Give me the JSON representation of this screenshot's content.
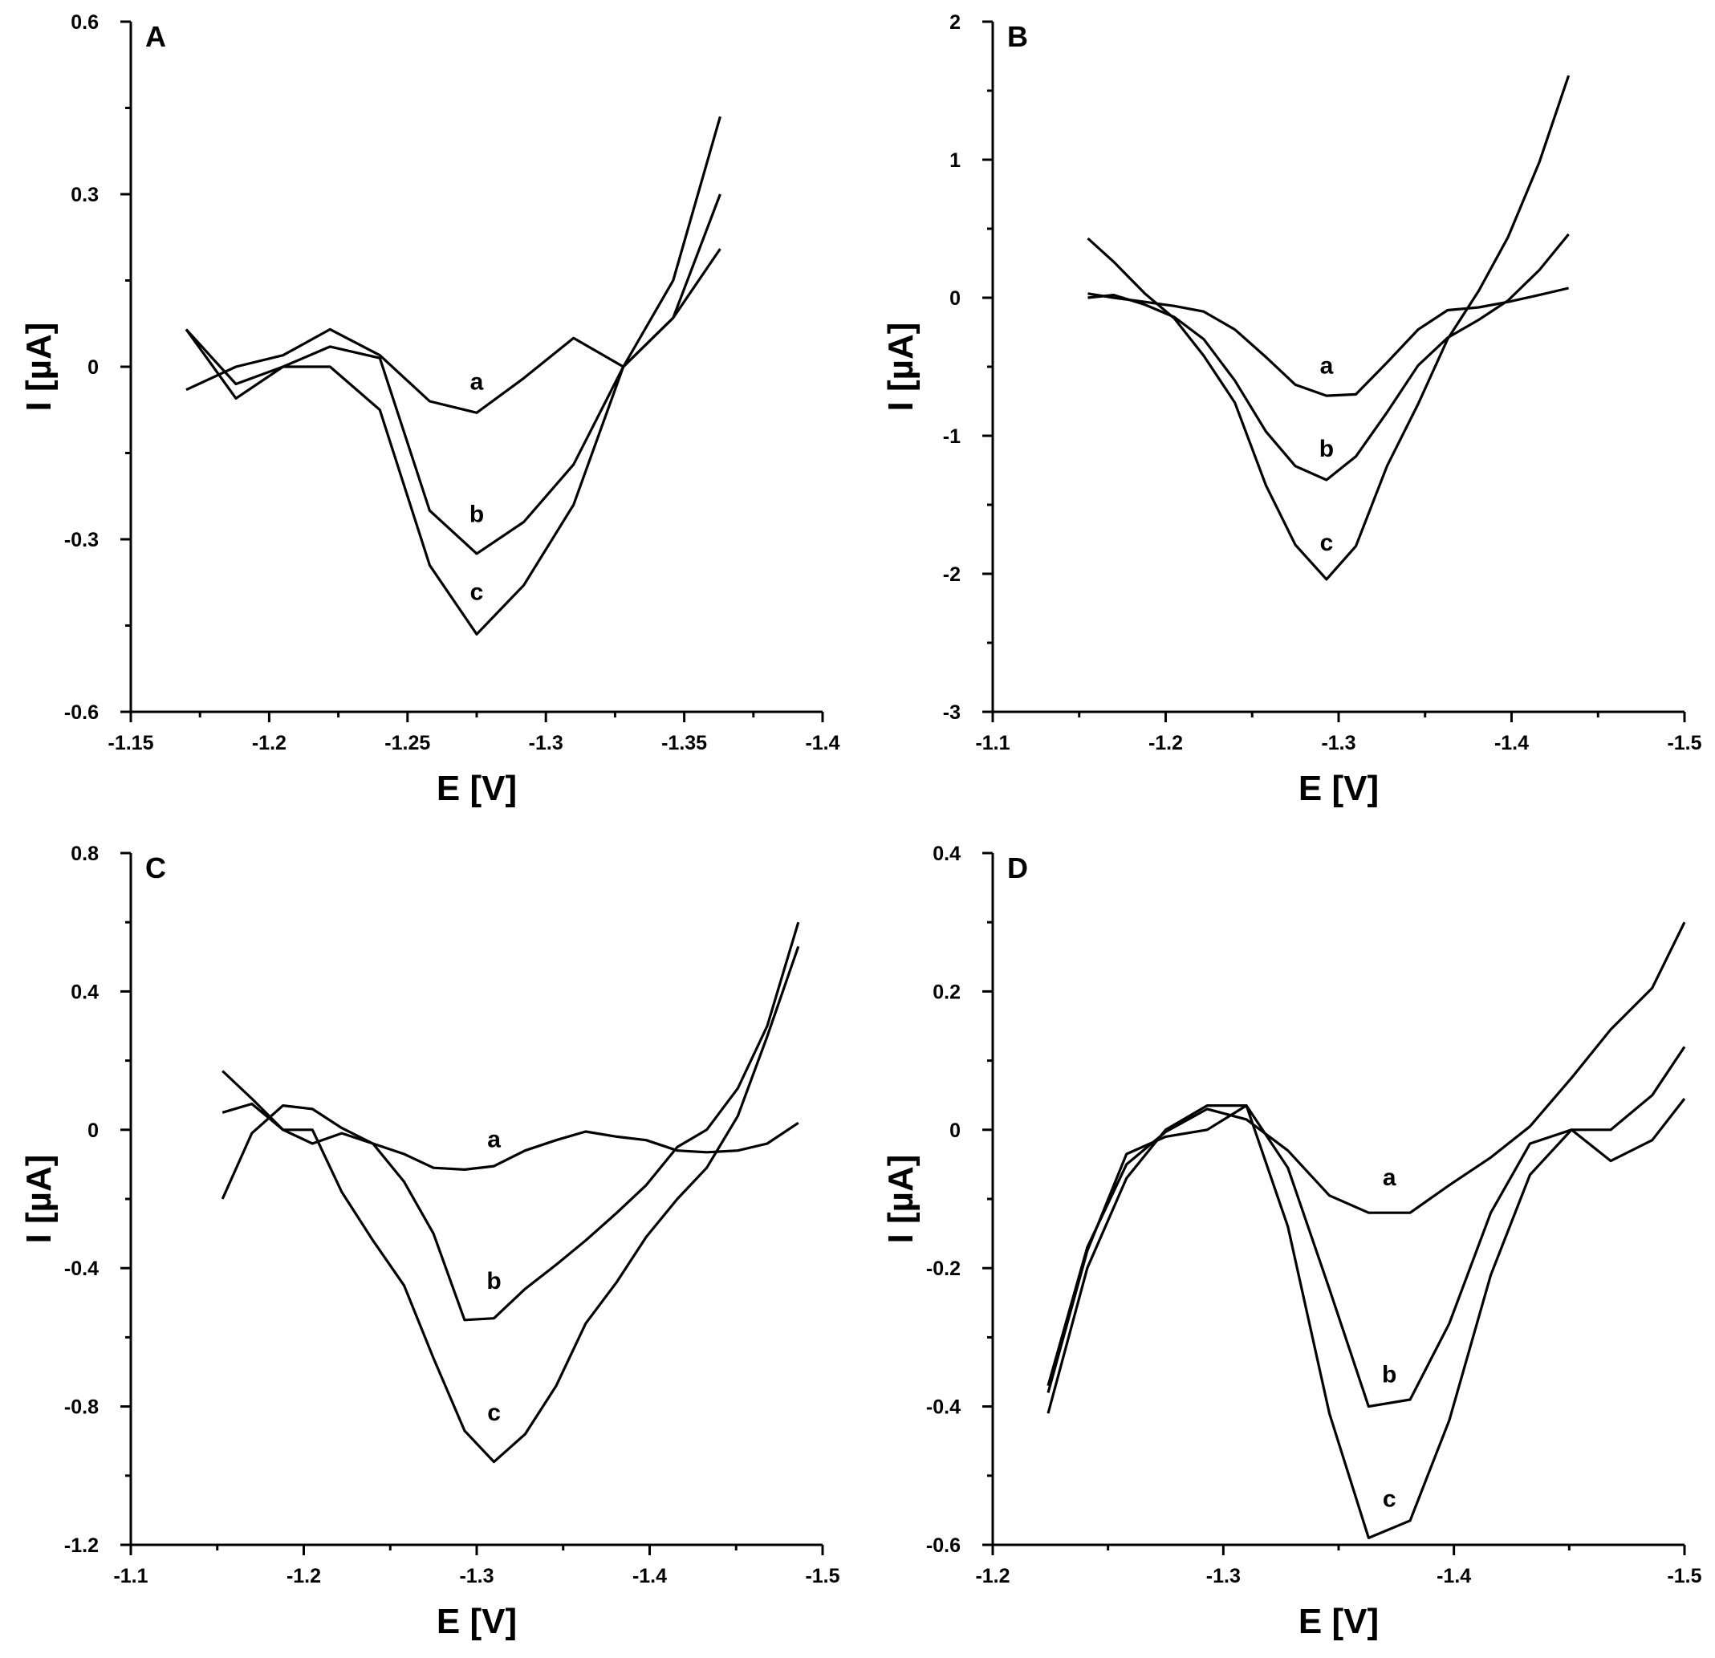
{
  "chart_data": [
    {
      "type": "line",
      "panel": "A",
      "xlabel": "E [V]",
      "ylabel": "I [µA]",
      "xlim": [
        -1.15,
        -1.4
      ],
      "ylim": [
        -0.6,
        0.6
      ],
      "xticks": [
        -1.15,
        -1.2,
        -1.25,
        -1.3,
        -1.35,
        -1.4
      ],
      "xtick_labels": [
        "-1.15",
        "-1.2",
        "-1.25",
        "-1.3",
        "-1.35",
        "-1.4"
      ],
      "yticks": [
        -0.6,
        -0.3,
        0,
        0.3,
        0.6
      ],
      "ytick_labels": [
        "-0.6",
        "-0.3",
        "0",
        "0.3",
        "0.6"
      ],
      "series": [
        {
          "name": "a",
          "label_at": [
            -1.275,
            -0.04
          ],
          "x": [
            -1.17,
            -1.188,
            -1.205,
            -1.222,
            -1.24,
            -1.258,
            -1.275,
            -1.292,
            -1.31,
            -1.328,
            -1.346,
            -1.363
          ],
          "y": [
            -0.04,
            0.0,
            0.02,
            0.065,
            0.02,
            -0.06,
            -0.08,
            -0.02,
            0.05,
            0.0,
            0.085,
            0.205
          ]
        },
        {
          "name": "b",
          "label_at": [
            -1.275,
            -0.27
          ],
          "x": [
            -1.17,
            -1.188,
            -1.205,
            -1.222,
            -1.24,
            -1.258,
            -1.275,
            -1.292,
            -1.31,
            -1.328,
            -1.346,
            -1.363
          ],
          "y": [
            0.065,
            -0.03,
            0.0,
            0.035,
            0.015,
            -0.25,
            -0.325,
            -0.27,
            -0.17,
            0.0,
            0.085,
            0.3
          ]
        },
        {
          "name": "c",
          "label_at": [
            -1.275,
            -0.405
          ],
          "x": [
            -1.17,
            -1.188,
            -1.205,
            -1.222,
            -1.24,
            -1.258,
            -1.275,
            -1.292,
            -1.31,
            -1.328,
            -1.346,
            -1.363
          ],
          "y": [
            0.065,
            -0.055,
            0.0,
            0.0,
            -0.075,
            -0.345,
            -0.465,
            -0.38,
            -0.24,
            0.0,
            0.15,
            0.435
          ]
        }
      ]
    },
    {
      "type": "line",
      "panel": "B",
      "xlabel": "E [V]",
      "ylabel": "I [µA]",
      "xlim": [
        -1.1,
        -1.5
      ],
      "ylim": [
        -3,
        2
      ],
      "xticks": [
        -1.1,
        -1.2,
        -1.3,
        -1.4,
        -1.5
      ],
      "xtick_labels": [
        "-1.1",
        "-1.2",
        "-1.3",
        "-1.4",
        "-1.5"
      ],
      "yticks": [
        -3,
        -2,
        -1,
        0,
        1,
        2
      ],
      "ytick_labels": [
        "-3",
        "-2",
        "-1",
        "0",
        "1",
        "2"
      ],
      "series": [
        {
          "name": "a",
          "label_at": [
            -1.293,
            -0.55
          ],
          "x": [
            -1.155,
            -1.17,
            -1.188,
            -1.205,
            -1.222,
            -1.24,
            -1.258,
            -1.275,
            -1.293,
            -1.31,
            -1.328,
            -1.346,
            -1.363,
            -1.381,
            -1.398,
            -1.416,
            -1.433
          ],
          "y": [
            0.03,
            0.0,
            -0.03,
            -0.06,
            -0.1,
            -0.23,
            -0.43,
            -0.63,
            -0.71,
            -0.7,
            -0.47,
            -0.23,
            -0.09,
            -0.07,
            -0.03,
            0.02,
            0.07
          ]
        },
        {
          "name": "b",
          "label_at": [
            -1.293,
            -1.15
          ],
          "x": [
            -1.155,
            -1.17,
            -1.188,
            -1.205,
            -1.222,
            -1.24,
            -1.258,
            -1.275,
            -1.293,
            -1.31,
            -1.328,
            -1.346,
            -1.363,
            -1.381,
            -1.398,
            -1.416,
            -1.433
          ],
          "y": [
            0.0,
            0.02,
            -0.05,
            -0.14,
            -0.3,
            -0.6,
            -0.97,
            -1.22,
            -1.32,
            -1.15,
            -0.83,
            -0.49,
            -0.29,
            -0.16,
            -0.02,
            0.2,
            0.46
          ]
        },
        {
          "name": "c",
          "label_at": [
            -1.293,
            -1.83
          ],
          "x": [
            -1.155,
            -1.17,
            -1.188,
            -1.205,
            -1.222,
            -1.24,
            -1.258,
            -1.275,
            -1.293,
            -1.31,
            -1.328,
            -1.346,
            -1.363,
            -1.381,
            -1.398,
            -1.416,
            -1.433
          ],
          "y": [
            0.43,
            0.26,
            0.03,
            -0.15,
            -0.42,
            -0.76,
            -1.36,
            -1.79,
            -2.04,
            -1.8,
            -1.22,
            -0.77,
            -0.3,
            0.05,
            0.44,
            0.98,
            1.61
          ]
        }
      ]
    },
    {
      "type": "line",
      "panel": "C",
      "xlabel": "E [V]",
      "ylabel": "I [µA]",
      "xlim": [
        -1.1,
        -1.5
      ],
      "ylim": [
        -1.2,
        0.8
      ],
      "xticks": [
        -1.1,
        -1.2,
        -1.3,
        -1.4,
        -1.5
      ],
      "xtick_labels": [
        "-1.1",
        "-1.2",
        "-1.3",
        "-1.4",
        "-1.5"
      ],
      "yticks": [
        -1.2,
        -0.8,
        -0.4,
        0,
        0.4,
        0.8
      ],
      "ytick_labels": [
        "-1.2",
        "-0.8",
        "-0.4",
        "0",
        "0.4",
        "0.8"
      ],
      "series": [
        {
          "name": "a",
          "label_at": [
            -1.31,
            -0.05
          ],
          "x": [
            -1.153,
            -1.17,
            -1.188,
            -1.205,
            -1.222,
            -1.24,
            -1.258,
            -1.275,
            -1.293,
            -1.31,
            -1.328,
            -1.346,
            -1.363,
            -1.381,
            -1.398,
            -1.416,
            -1.433,
            -1.451,
            -1.468,
            -1.486
          ],
          "y": [
            0.05,
            0.075,
            0.0,
            -0.04,
            -0.01,
            -0.04,
            -0.07,
            -0.11,
            -0.115,
            -0.105,
            -0.06,
            -0.03,
            -0.005,
            -0.02,
            -0.03,
            -0.06,
            -0.065,
            -0.06,
            -0.04,
            0.02
          ]
        },
        {
          "name": "b",
          "label_at": [
            -1.31,
            -0.46
          ],
          "x": [
            -1.153,
            -1.17,
            -1.188,
            -1.205,
            -1.222,
            -1.24,
            -1.258,
            -1.275,
            -1.293,
            -1.31,
            -1.328,
            -1.346,
            -1.363,
            -1.381,
            -1.398,
            -1.416,
            -1.433,
            -1.451,
            -1.468,
            -1.486
          ],
          "y": [
            -0.2,
            -0.01,
            0.07,
            0.06,
            0.005,
            -0.04,
            -0.15,
            -0.3,
            -0.55,
            -0.545,
            -0.46,
            -0.39,
            -0.32,
            -0.24,
            -0.16,
            -0.05,
            0.0,
            0.12,
            0.3,
            0.6
          ]
        },
        {
          "name": "c",
          "label_at": [
            -1.31,
            -0.84
          ],
          "x": [
            -1.153,
            -1.17,
            -1.188,
            -1.205,
            -1.222,
            -1.24,
            -1.258,
            -1.275,
            -1.293,
            -1.31,
            -1.328,
            -1.346,
            -1.363,
            -1.381,
            -1.398,
            -1.416,
            -1.433,
            -1.451,
            -1.468,
            -1.486
          ],
          "y": [
            0.17,
            0.09,
            0.0,
            0.0,
            -0.18,
            -0.32,
            -0.45,
            -0.66,
            -0.87,
            -0.96,
            -0.88,
            -0.74,
            -0.56,
            -0.44,
            -0.31,
            -0.2,
            -0.11,
            0.04,
            0.27,
            0.53
          ]
        }
      ]
    },
    {
      "type": "line",
      "panel": "D",
      "xlabel": "E [V]",
      "ylabel": "I [µA]",
      "xlim": [
        -1.2,
        -1.5
      ],
      "ylim": [
        -0.6,
        0.4
      ],
      "xticks": [
        -1.2,
        -1.3,
        -1.4,
        -1.5
      ],
      "xtick_labels": [
        "-1.2",
        "-1.3",
        "-1.4",
        "-1.5"
      ],
      "yticks": [
        -0.6,
        -0.4,
        -0.2,
        0,
        0.2,
        0.4
      ],
      "ytick_labels": [
        "-0.6",
        "-0.4",
        "-0.2",
        "0",
        "0.2",
        "0.4"
      ],
      "series": [
        {
          "name": "a",
          "label_at": [
            -1.372,
            -0.08
          ],
          "x": [
            -1.224,
            -1.241,
            -1.258,
            -1.275,
            -1.293,
            -1.31,
            -1.328,
            -1.346,
            -1.363,
            -1.381,
            -1.398,
            -1.416,
            -1.433,
            -1.451,
            -1.468,
            -1.486,
            -1.5
          ],
          "y": [
            -0.37,
            -0.17,
            -0.05,
            -0.003,
            0.03,
            0.015,
            -0.03,
            -0.095,
            -0.12,
            -0.12,
            -0.08,
            -0.04,
            0.005,
            0.075,
            0.145,
            0.205,
            0.3
          ]
        },
        {
          "name": "b",
          "label_at": [
            -1.372,
            -0.365
          ],
          "x": [
            -1.224,
            -1.241,
            -1.258,
            -1.275,
            -1.293,
            -1.31,
            -1.328,
            -1.346,
            -1.363,
            -1.381,
            -1.398,
            -1.416,
            -1.433,
            -1.451,
            -1.468,
            -1.486,
            -1.5
          ],
          "y": [
            -0.38,
            -0.175,
            -0.035,
            -0.01,
            0.0,
            0.035,
            -0.055,
            -0.23,
            -0.4,
            -0.39,
            -0.28,
            -0.12,
            -0.02,
            0.0,
            -0.045,
            -0.015,
            0.045
          ]
        },
        {
          "name": "c",
          "label_at": [
            -1.372,
            -0.545
          ],
          "x": [
            -1.224,
            -1.241,
            -1.258,
            -1.275,
            -1.293,
            -1.31,
            -1.328,
            -1.346,
            -1.363,
            -1.381,
            -1.398,
            -1.416,
            -1.433,
            -1.451,
            -1.468,
            -1.486,
            -1.5
          ],
          "y": [
            -0.41,
            -0.2,
            -0.07,
            -0.0,
            0.035,
            0.035,
            -0.14,
            -0.41,
            -0.59,
            -0.565,
            -0.42,
            -0.21,
            -0.065,
            0.0,
            0.0,
            0.05,
            0.12
          ]
        }
      ]
    }
  ]
}
